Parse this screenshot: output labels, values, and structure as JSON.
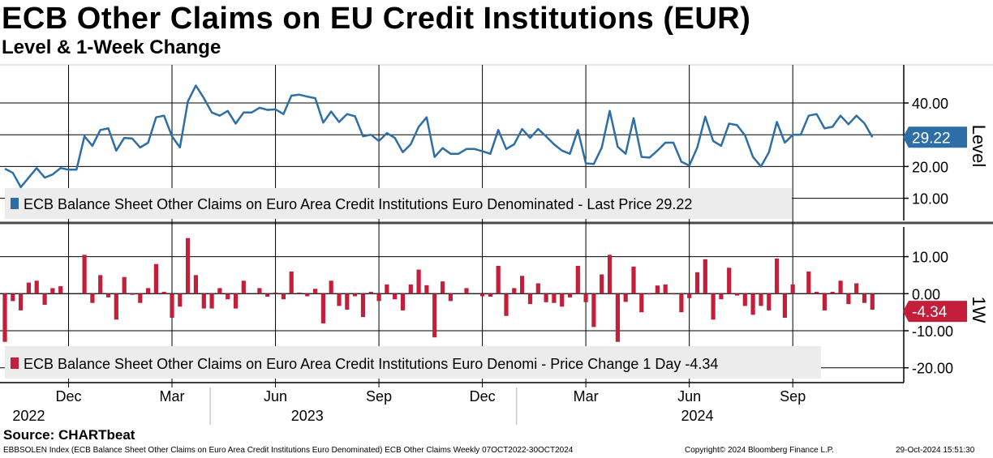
{
  "title": "ECB Other Claims on EU Credit Institutions (EUR)",
  "subtitle": "Level & 1-Week Change",
  "source": "Source: CHARTbeat",
  "footer": {
    "left": "EBBSOLEN Index (ECB Balance Sheet Other Claims on Euro Area Credit Institutions Euro Denominated) ECB Other Claims  Weekly 07OCT2022-30OCT2024",
    "middle": "Copyright© 2024 Bloomberg Finance L.P.",
    "right": "29-Oct-2024 15:51:30"
  },
  "colors": {
    "level": "#2d6ea6",
    "change": "#c41e3a",
    "grid": "#000000",
    "legend_bg": "#ececec",
    "divider": "#4a4a4a"
  },
  "chart_data": [
    {
      "type": "line",
      "panel_label": "Level",
      "legend": "ECB Balance Sheet Other Claims on Euro Area Credit Institutions Euro Denominated - Last Price 29.22",
      "last_value_label": "29.22",
      "last_value": 29.22,
      "ylim": [
        3,
        52
      ],
      "yticks": [
        10,
        20,
        30,
        40
      ],
      "ytick_labels": [
        "10.00",
        "20.00",
        "",
        "40.00"
      ],
      "grid": true,
      "series": [
        {
          "name": "Level",
          "values": [
            19.3,
            18,
            13.5,
            16.5,
            19.5,
            16.5,
            17.5,
            19.5,
            19,
            19,
            29.5,
            26.5,
            31.5,
            32,
            25,
            29,
            28.8,
            26,
            27.5,
            35.5,
            36,
            29.5,
            26,
            40.5,
            45.5,
            41.5,
            37,
            36,
            37.5,
            33.5,
            37,
            37,
            38.5,
            37.8,
            38,
            36.5,
            42.3,
            42.6,
            42,
            41.5,
            33.8,
            37.3,
            34,
            36.5,
            35.8,
            29.5,
            30,
            28,
            30.5,
            29,
            24.5,
            27,
            32.5,
            35.5,
            23,
            25.8,
            24,
            24,
            25.5,
            25.5,
            24.8,
            24,
            31.5,
            25.5,
            27,
            31.8,
            29,
            31.8,
            29.5,
            27,
            25,
            24,
            31.5,
            21,
            20.8,
            26,
            37.5,
            26.2,
            24,
            35.2,
            23,
            22.8,
            25,
            27.5,
            27.5,
            21.5,
            20.3,
            26,
            35.7,
            28,
            26.5,
            33.5,
            33,
            29.8,
            23,
            20,
            24.5,
            34,
            27.5,
            30,
            30,
            36,
            36.5,
            32,
            32.5,
            36,
            33.3,
            36,
            33.6,
            29.2
          ]
        }
      ]
    },
    {
      "type": "bar",
      "panel_label": "1W",
      "legend": "ECB Balance Sheet Other Claims on Euro Area Credit Institutions Euro Denomi - Price Change 1 Day -4.34",
      "last_value_label": "-4.34",
      "last_value": -4.34,
      "ylim": [
        -24,
        18
      ],
      "yticks": [
        -20,
        -10,
        0,
        10
      ],
      "ytick_labels": [
        "-20.00",
        "-10.00",
        "0.00",
        "10.00"
      ],
      "grid": true,
      "series": [
        {
          "name": "1-Week Change",
          "values": [
            -13,
            -2,
            -4.5,
            3,
            3.5,
            -3,
            1.5,
            2,
            0,
            0,
            10.5,
            -2.5,
            5,
            -1,
            -7,
            4.5,
            -0.3,
            -2.5,
            1.5,
            8,
            0.5,
            -6.5,
            -3.5,
            15,
            5,
            -4,
            -4,
            1.5,
            -1.5,
            -4,
            3.5,
            0,
            1.5,
            -0.8,
            0.3,
            -1.5,
            6,
            0.3,
            -0.7,
            1.3,
            -8,
            3.5,
            -3.3,
            -4.3,
            -0.7,
            -6.3,
            0.5,
            -2,
            2.5,
            -1.5,
            -4.5,
            2.5,
            6.5,
            2.3,
            -11.8,
            3.3,
            -2,
            0,
            1.5,
            0,
            -0.7,
            -0.8,
            7.5,
            -6,
            1.5,
            4.8,
            -2.8,
            2.8,
            -2.3,
            -2.5,
            -3.5,
            -1,
            7.5,
            -2.3,
            -9,
            5.2,
            10.5,
            -13,
            -2.2,
            7.3,
            -5,
            -0.2,
            2.2,
            2.5,
            -0.2,
            -5,
            -1.2,
            5.8,
            9.3,
            -7,
            -1.5,
            7,
            -0.5,
            -3.3,
            -5.7,
            -3.3,
            -4.5,
            9.5,
            -6.5,
            2.5,
            0,
            6,
            0.5,
            -4.5,
            0.5,
            3.5,
            -2.8,
            2.8,
            -2.5,
            -4.3
          ]
        }
      ]
    }
  ],
  "x_axis": {
    "month_labels": [
      "Dec",
      "Mar",
      "Jun",
      "Sep",
      "Dec",
      "Mar",
      "Jun",
      "Sep"
    ],
    "month_weeks": [
      8,
      21,
      34,
      47,
      60,
      73,
      86,
      99
    ],
    "year_labels": [
      "2022",
      "2023",
      "2024"
    ],
    "year_weeks": [
      3,
      38,
      87
    ],
    "year_separators": [
      25.8,
      64.3
    ]
  }
}
